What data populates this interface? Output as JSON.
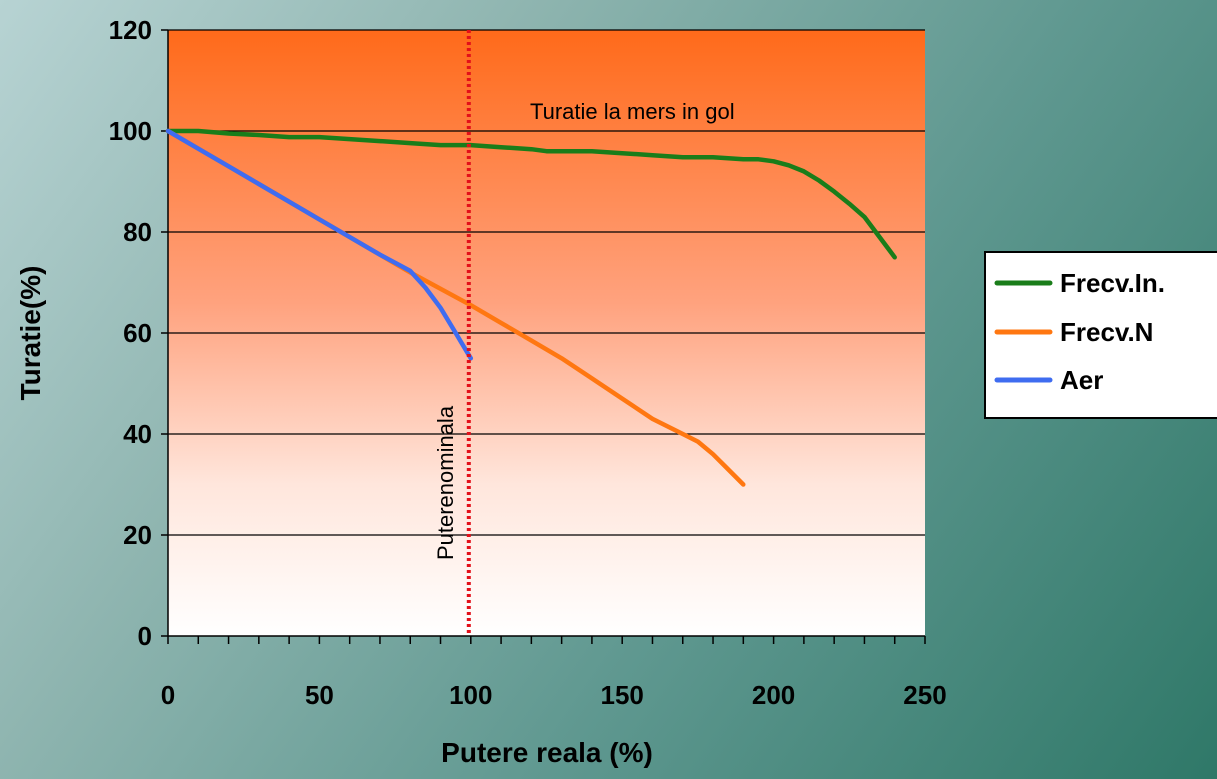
{
  "chart_data": {
    "type": "line",
    "xlabel": "Putere reala (%)",
    "ylabel": "Turatie(%)",
    "xlim": [
      0,
      250
    ],
    "ylim": [
      0,
      120
    ],
    "x_ticks": [
      "0",
      "50",
      "100",
      "150",
      "200",
      "250"
    ],
    "y_ticks": [
      "0",
      "20",
      "40",
      "60",
      "80",
      "100",
      "120"
    ],
    "grid": "horizontal",
    "legend_position": "right",
    "annotations": {
      "idle_speed": "Turatie la mers in gol",
      "rated_power": "Puterenominala"
    },
    "reference_lines": {
      "idle_speed_y": 100,
      "rated_power_x": 100
    },
    "background_colors": {
      "top": "#ff6a1a",
      "bottom": "#ffffff"
    },
    "series": [
      {
        "name": "Frecv.In.",
        "color": "#1a7d1a",
        "x": [
          0,
          10,
          20,
          30,
          40,
          50,
          60,
          70,
          80,
          90,
          100,
          110,
          120,
          125,
          130,
          140,
          150,
          160,
          170,
          180,
          190,
          195,
          200,
          205,
          210,
          215,
          220,
          225,
          230,
          235,
          240
        ],
        "y": [
          100,
          100,
          99.5,
          99.2,
          98.8,
          98.8,
          98.4,
          98,
          97.6,
          97.2,
          97.2,
          96.8,
          96.4,
          96,
          96,
          96,
          95.6,
          95.2,
          94.8,
          94.8,
          94.4,
          94.4,
          94,
          93.2,
          92,
          90.2,
          88,
          85.6,
          83,
          79,
          75
        ]
      },
      {
        "name": "Frecv.N",
        "color": "#ff7711",
        "x": [
          0,
          20,
          40,
          60,
          80,
          100,
          110,
          120,
          130,
          140,
          150,
          160,
          170,
          175,
          180,
          185,
          190
        ],
        "y": [
          100,
          93,
          86,
          79,
          72,
          65.5,
          62,
          58.5,
          55,
          51,
          47,
          43,
          40,
          38.5,
          36,
          33,
          30
        ]
      },
      {
        "name": "Aer",
        "color": "#3f6cf0",
        "x": [
          0,
          10,
          20,
          30,
          40,
          50,
          60,
          70,
          80,
          85,
          90,
          95,
          97,
          100
        ],
        "y": [
          100,
          96.5,
          93,
          89.5,
          86,
          82.5,
          79,
          75.5,
          72.3,
          69,
          65,
          60,
          58,
          55
        ]
      }
    ]
  }
}
